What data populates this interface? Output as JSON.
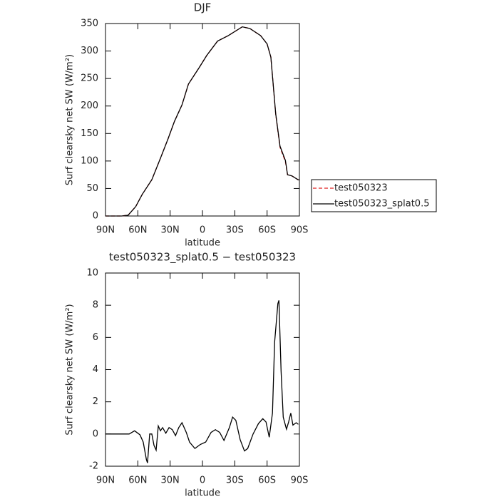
{
  "chart_data": [
    {
      "type": "line",
      "title": "DJF",
      "xlabel": "latitude",
      "ylabel": "Surf clearsky net SW (W/m²)",
      "x": [
        90,
        75,
        69,
        62,
        56,
        47,
        39,
        32,
        26,
        19,
        13,
        3,
        -4,
        -14,
        -24,
        -37,
        -44,
        -54,
        -60,
        -63.5,
        -68,
        -72,
        -77,
        -79,
        -83,
        -88.7,
        -90
      ],
      "series": [
        {
          "name": "test050323",
          "color": "#e02020",
          "dash": true,
          "values": [
            0,
            0,
            1.5,
            17,
            39,
            66,
            105,
            140,
            172,
            202,
            240,
            270,
            292,
            318,
            328,
            344,
            341,
            328,
            313,
            289,
            185,
            125,
            99,
            75,
            73,
            66,
            66
          ]
        },
        {
          "name": "test050323_splat0.5",
          "color": "#000000",
          "dash": false,
          "values": [
            0,
            0,
            1.5,
            17,
            39,
            66,
            105,
            140,
            172,
            202,
            240,
            270,
            292,
            318,
            328,
            344,
            341,
            328,
            313,
            289,
            186,
            127,
            101,
            75,
            73,
            66,
            66
          ]
        }
      ],
      "xlim": [
        90,
        -90
      ],
      "xticks": [
        {
          "value": 90,
          "label": "90N"
        },
        {
          "value": 60,
          "label": "60N"
        },
        {
          "value": 30,
          "label": "30N"
        },
        0,
        {
          "value": -30,
          "label": "30S"
        },
        {
          "value": -60,
          "label": "60S"
        },
        {
          "value": -90,
          "label": "90S"
        }
      ],
      "ylim": [
        0,
        350
      ],
      "yticks": [
        0,
        50,
        100,
        150,
        200,
        250,
        300,
        350
      ],
      "legend": "right"
    },
    {
      "type": "line",
      "title": "test050323_splat0.5 − test050323",
      "xlabel": "latitude",
      "ylabel": "Surf clearsky net SW (W/m²)",
      "x": [
        90,
        75,
        68,
        63,
        58,
        55,
        52,
        51,
        49,
        47,
        45,
        43,
        41,
        39,
        37,
        34,
        31,
        28,
        25,
        22,
        19,
        15,
        12,
        7,
        2,
        -3,
        -8,
        -12,
        -16,
        -20,
        -25,
        -28,
        -31,
        -35,
        -39,
        -42,
        -47,
        -52,
        -56,
        -59,
        -62,
        -65,
        -67,
        -70,
        -71,
        -73,
        -75,
        -78,
        -80,
        -82,
        -84,
        -87,
        -89
      ],
      "series": [
        {
          "color": "#000000",
          "dash": false,
          "values": [
            0,
            0,
            0,
            0.2,
            -0.05,
            -0.5,
            -1.6,
            -1.8,
            0,
            0,
            -0.7,
            -1,
            0.5,
            0.2,
            0.4,
            0.05,
            0.4,
            0.27,
            -0.1,
            0.4,
            0.7,
            0.1,
            -0.5,
            -0.9,
            -0.65,
            -0.5,
            0.1,
            0.27,
            0.1,
            -0.4,
            0.4,
            1.05,
            0.85,
            -0.35,
            -1.05,
            -0.9,
            0,
            0.65,
            0.95,
            0.75,
            -0.2,
            1.3,
            5.7,
            8.1,
            8.3,
            3.9,
            1.05,
            0.3,
            0.75,
            1.3,
            0.55,
            0.7,
            0.6
          ]
        }
      ],
      "xlim": [
        90,
        -90
      ],
      "xticks": [
        {
          "value": 90,
          "label": "90N"
        },
        {
          "value": 60,
          "label": "60N"
        },
        {
          "value": 30,
          "label": "30N"
        },
        0,
        {
          "value": -30,
          "label": "30S"
        },
        {
          "value": -60,
          "label": "60S"
        },
        {
          "value": -90,
          "label": "90S"
        }
      ],
      "ylim": [
        -2,
        10
      ],
      "yticks": [
        -2,
        0,
        2,
        4,
        6,
        8,
        10
      ]
    }
  ]
}
